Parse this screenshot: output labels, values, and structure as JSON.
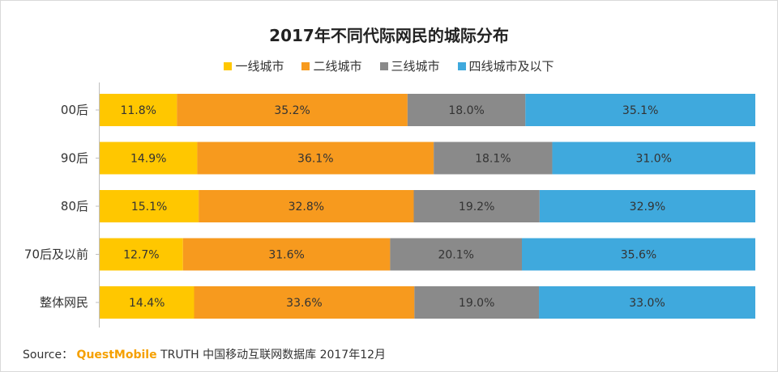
{
  "chart_data": {
    "type": "bar",
    "orientation": "horizontal",
    "stacked": "percent",
    "title": "2017年不同代际网民的城际分布",
    "categories": [
      "00后",
      "90后",
      "80后",
      "70后及以前",
      "整体网民"
    ],
    "series": [
      {
        "name": "一线城市",
        "color": "#ffc700",
        "values": [
          11.8,
          14.9,
          15.1,
          12.7,
          14.4
        ],
        "labels": [
          "11.8%",
          "14.9%",
          "15.1%",
          "12.7%",
          "14.4%"
        ]
      },
      {
        "name": "二线城市",
        "color": "#f79a1e",
        "values": [
          35.2,
          36.1,
          32.8,
          31.6,
          33.6
        ],
        "labels": [
          "35.2%",
          "36.1%",
          "32.8%",
          "31.6%",
          "33.6%"
        ]
      },
      {
        "name": "三线城市",
        "color": "#8a8a8a",
        "values": [
          18.0,
          18.1,
          19.2,
          20.1,
          19.0
        ],
        "labels": [
          "18.0%",
          "18.1%",
          "19.2%",
          "20.1%",
          "19.0%"
        ]
      },
      {
        "name": "四线城市及以下",
        "color": "#3fa9dd",
        "values": [
          35.1,
          31.0,
          32.9,
          35.6,
          33.0
        ],
        "labels": [
          "35.1%",
          "31.0%",
          "32.9%",
          "35.6%",
          "33.0%"
        ]
      }
    ],
    "legend_position": "top-center",
    "grid": false
  },
  "source": {
    "prefix": "Source：",
    "brand": "QuestMobile",
    "text": "TRUTH 中国移动互联网数据库 2017年12月"
  }
}
